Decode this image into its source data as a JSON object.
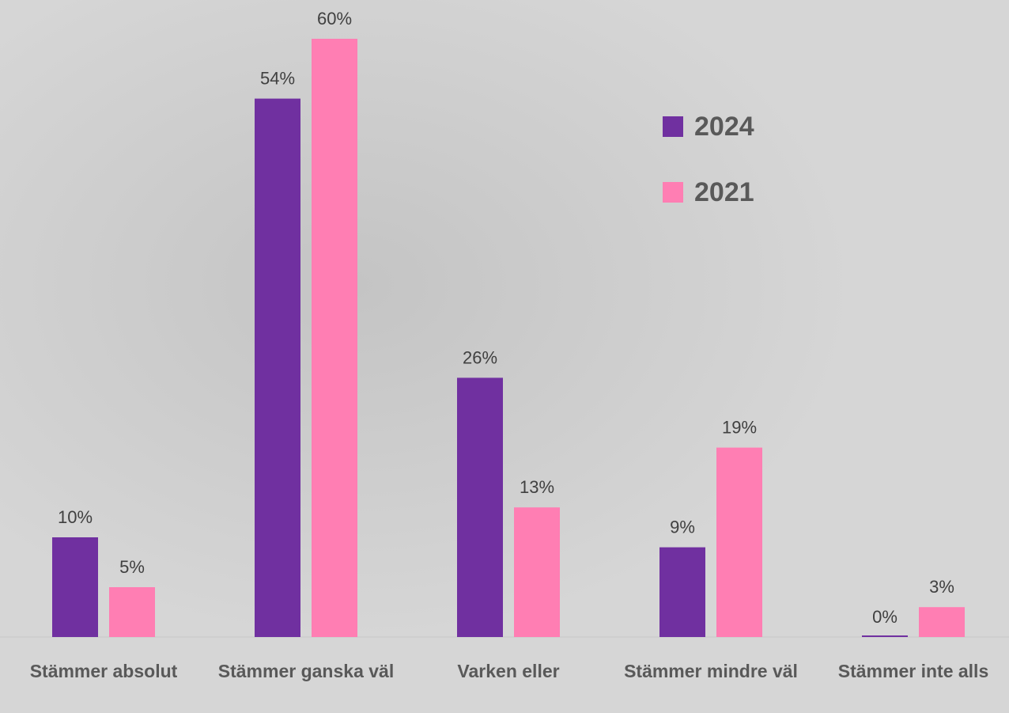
{
  "chart_data": {
    "type": "bar",
    "categories": [
      "Stämmer absolut",
      "Stämmer ganska väl",
      "Varken eller",
      "Stämmer mindre väl",
      "Stämmer inte alls"
    ],
    "series": [
      {
        "name": "2024",
        "color": "#7030a0",
        "values": [
          10,
          54,
          26,
          9,
          0
        ],
        "value_labels": [
          "10%",
          "54%",
          "26%",
          "9%",
          "0%"
        ]
      },
      {
        "name": "2021",
        "color": "#ff7eb3",
        "values": [
          5,
          60,
          13,
          19,
          3
        ],
        "value_labels": [
          "5%",
          "60%",
          "13%",
          "19%",
          "3%"
        ]
      }
    ]
  }
}
